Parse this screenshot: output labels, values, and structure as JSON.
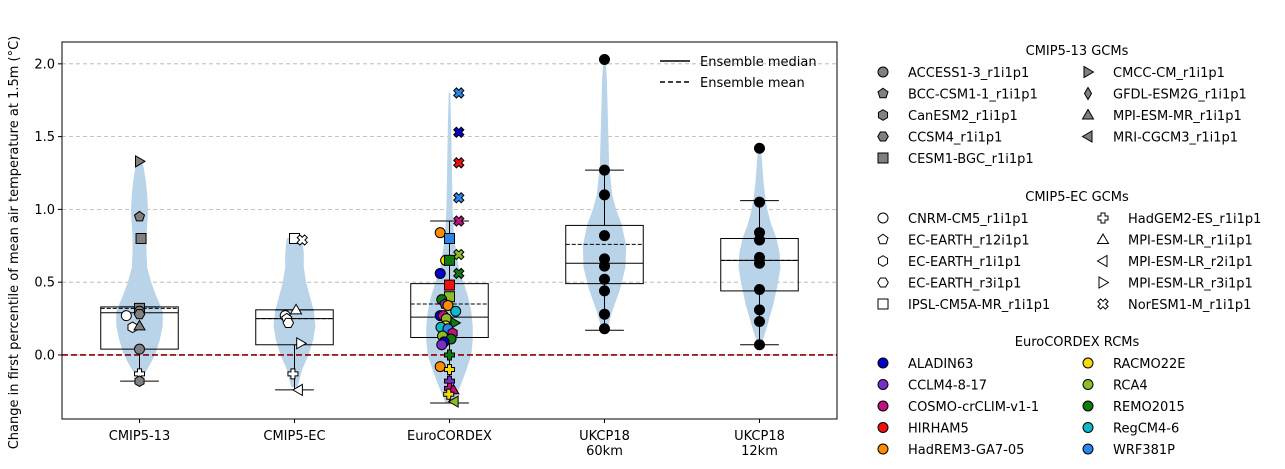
{
  "chart_data": {
    "type": "violin-box-scatter",
    "ylabel": "Change in first percentile of mean air temperature at 1.5m (°C)",
    "ylim": [
      -0.44,
      2.15
    ],
    "yticks": [
      0.0,
      0.5,
      1.0,
      1.5,
      2.0
    ],
    "ytick_labels": [
      "0.0",
      "0.5",
      "1.0",
      "1.5",
      "2.0"
    ],
    "grid": "horizontal dashed",
    "zero_line": {
      "value": 0.0,
      "color": "#8b0000",
      "style": "dashed"
    },
    "categories": [
      "CMIP5-13",
      "CMIP5-EC",
      "EuroCORDEX",
      "UKCP18 60km",
      "UKCP18 12km"
    ],
    "category_label_lines": [
      [
        "CMIP5-13"
      ],
      [
        "CMIP5-EC"
      ],
      [
        "EuroCORDEX"
      ],
      [
        "UKCP18",
        "60km"
      ],
      [
        "UKCP18",
        "12km"
      ]
    ],
    "legend_lines": {
      "placement": "top-right",
      "entries": [
        {
          "label": "Ensemble median",
          "style": "solid"
        },
        {
          "label": "Ensemble mean",
          "style": "dashed"
        }
      ]
    },
    "groups": [
      {
        "name": "CMIP5-13",
        "box": {
          "q1": 0.04,
          "median": 0.29,
          "q3": 0.33,
          "mean": 0.32,
          "whisker_low": -0.18,
          "whisker_high": 0.33
        },
        "violin": [
          [
            -0.16,
            0.03
          ],
          [
            -0.08,
            0.12
          ],
          [
            0.0,
            0.2
          ],
          [
            0.1,
            0.26
          ],
          [
            0.2,
            0.3
          ],
          [
            0.3,
            0.3
          ],
          [
            0.4,
            0.22
          ],
          [
            0.5,
            0.15
          ],
          [
            0.6,
            0.1
          ],
          [
            0.7,
            0.09
          ],
          [
            0.8,
            0.09
          ],
          [
            0.9,
            0.1
          ],
          [
            1.0,
            0.11
          ],
          [
            1.1,
            0.1
          ],
          [
            1.2,
            0.08
          ],
          [
            1.3,
            0.05
          ],
          [
            1.35,
            0.01
          ]
        ],
        "points": [
          {
            "model": "CMCC-CM_r1i1p1",
            "y": 1.33,
            "dx": 0.0
          },
          {
            "model": "BCC-CSM1-1_r1i1p1",
            "y": 0.95,
            "dx": 0.0
          },
          {
            "model": "CESM1-BGC_r1i1p1",
            "y": 0.8,
            "dx": 0.02
          },
          {
            "model": "CESM1-BGC_r1i1p1",
            "y": 0.32,
            "dx": 0.0
          },
          {
            "model": "ACCESS1-3_r1i1p1",
            "y": 0.3,
            "dx": 0.0
          },
          {
            "model": "CCSM4_r1i1p1",
            "y": 0.28,
            "dx": 0.0
          },
          {
            "model": "CNRM-CM5_r1i1p1",
            "y": 0.27,
            "dx": -0.17
          },
          {
            "model": "EC-EARTH_r1i1p1",
            "y": 0.19,
            "dx": -0.09
          },
          {
            "model": "MPI-ESM-MR_r1i1p1",
            "y": 0.2,
            "dx": 0.0
          },
          {
            "model": "ACCESS1-3_r1i1p1",
            "y": 0.04,
            "dx": 0.0
          },
          {
            "model": "HadGEM2-ES_r1i1p1",
            "y": -0.13,
            "dx": 0.0
          },
          {
            "model": "CanESM2_r1i1p1",
            "y": -0.18,
            "dx": 0.0
          }
        ]
      },
      {
        "name": "CMIP5-EC",
        "box": {
          "q1": 0.07,
          "median": 0.25,
          "q3": 0.31,
          "mean": 0.25,
          "whisker_low": -0.24,
          "whisker_high": 0.31
        },
        "violin": [
          [
            -0.22,
            0.04
          ],
          [
            -0.1,
            0.1
          ],
          [
            0.0,
            0.18
          ],
          [
            0.1,
            0.24
          ],
          [
            0.2,
            0.27
          ],
          [
            0.3,
            0.25
          ],
          [
            0.4,
            0.2
          ],
          [
            0.5,
            0.15
          ],
          [
            0.6,
            0.12
          ],
          [
            0.7,
            0.12
          ],
          [
            0.8,
            0.1
          ],
          [
            0.82,
            0.02
          ]
        ],
        "points": [
          {
            "model": "IPSL-CM5A-MR_r1i1p1",
            "y": 0.8,
            "dx": 0.0
          },
          {
            "model": "NorESM1-M_r1i1p1",
            "y": 0.79,
            "dx": 0.1
          },
          {
            "model": "MPI-ESM-LR_r1i1p1",
            "y": 0.31,
            "dx": 0.02
          },
          {
            "model": "CNRM-CM5_r1i1p1",
            "y": 0.27,
            "dx": -0.12
          },
          {
            "model": "EC-EARTH_r12i1p1",
            "y": 0.25,
            "dx": -0.1
          },
          {
            "model": "EC-EARTH_r3i1p1",
            "y": 0.22,
            "dx": -0.08
          },
          {
            "model": "MPI-ESM-LR_r3i1p1",
            "y": 0.08,
            "dx": 0.08
          },
          {
            "model": "HadGEM2-ES_r1i1p1",
            "y": -0.13,
            "dx": -0.02
          },
          {
            "model": "MPI-ESM-LR_r2i1p1",
            "y": -0.24,
            "dx": 0.05
          }
        ]
      },
      {
        "name": "EuroCORDEX",
        "box": {
          "q1": 0.12,
          "median": 0.26,
          "q3": 0.49,
          "mean": 0.35,
          "whisker_low": -0.33,
          "whisker_high": 0.92
        },
        "violin": [
          [
            -0.33,
            0.05
          ],
          [
            -0.2,
            0.15
          ],
          [
            -0.1,
            0.22
          ],
          [
            0.0,
            0.28
          ],
          [
            0.1,
            0.3
          ],
          [
            0.2,
            0.3
          ],
          [
            0.3,
            0.28
          ],
          [
            0.4,
            0.24
          ],
          [
            0.5,
            0.18
          ],
          [
            0.6,
            0.12
          ],
          [
            0.8,
            0.06
          ],
          [
            1.0,
            0.04
          ],
          [
            1.3,
            0.03
          ],
          [
            1.6,
            0.02
          ],
          [
            1.8,
            0.01
          ]
        ],
        "points": [
          {
            "model": "WRF381P",
            "y": 1.8,
            "dx": 0.12,
            "marker": "X"
          },
          {
            "model": "ALADIN63",
            "y": 1.53,
            "dx": 0.12,
            "marker": "X"
          },
          {
            "model": "HIRHAM5",
            "y": 1.32,
            "dx": 0.12,
            "marker": "X"
          },
          {
            "model": "WRF381P",
            "y": 1.08,
            "dx": 0.12,
            "marker": "X"
          },
          {
            "model": "COSMO-crCLIM-v1-1",
            "y": 0.92,
            "dx": 0.12,
            "marker": "X"
          },
          {
            "model": "HadREM3-GA7-05",
            "y": 0.84,
            "dx": -0.12,
            "marker": "o"
          },
          {
            "model": "WRF381P",
            "y": 0.8,
            "dx": 0.0,
            "marker": "s"
          },
          {
            "model": "RCA4",
            "y": 0.69,
            "dx": 0.12,
            "marker": "X"
          },
          {
            "model": "RACMO22E",
            "y": 0.65,
            "dx": -0.05,
            "marker": "o"
          },
          {
            "model": "REMO2015",
            "y": 0.65,
            "dx": 0.0,
            "marker": "s"
          },
          {
            "model": "ALADIN63",
            "y": 0.56,
            "dx": -0.12,
            "marker": "o"
          },
          {
            "model": "REMO2015",
            "y": 0.56,
            "dx": 0.12,
            "marker": "X"
          },
          {
            "model": "HIRHAM5",
            "y": 0.48,
            "dx": 0.0,
            "marker": "s"
          },
          {
            "model": "RCA4",
            "y": 0.4,
            "dx": 0.0,
            "marker": "s"
          },
          {
            "model": "REMO2015",
            "y": 0.38,
            "dx": -0.1,
            "marker": "o"
          },
          {
            "model": "CCLM4-8-17",
            "y": 0.35,
            "dx": -0.06,
            "marker": "p"
          },
          {
            "model": "HadREM3-GA7-05",
            "y": 0.34,
            "dx": -0.02,
            "marker": "o"
          },
          {
            "model": "RegCM4-6",
            "y": 0.3,
            "dx": 0.08,
            "marker": "o"
          },
          {
            "model": "ALADIN63",
            "y": 0.27,
            "dx": -0.12,
            "marker": "o"
          },
          {
            "model": "COSMO-crCLIM-v1-1",
            "y": 0.27,
            "dx": -0.08,
            "marker": "o"
          },
          {
            "model": "RCA4",
            "y": 0.25,
            "dx": -0.04,
            "marker": "o"
          },
          {
            "model": "REMO2015",
            "y": 0.22,
            "dx": 0.07,
            "marker": ">"
          },
          {
            "model": "RACMO22E",
            "y": 0.2,
            "dx": -0.05,
            "marker": "o"
          },
          {
            "model": "RegCM4-6",
            "y": 0.19,
            "dx": -0.11,
            "marker": "o"
          },
          {
            "model": "WRF381P",
            "y": 0.18,
            "dx": -0.02,
            "marker": "o"
          },
          {
            "model": "COSMO-crCLIM-v1-1",
            "y": 0.15,
            "dx": 0.04,
            "marker": "h"
          },
          {
            "model": "RCA4",
            "y": 0.13,
            "dx": -0.09,
            "marker": "o"
          },
          {
            "model": "REMO2015",
            "y": 0.11,
            "dx": 0.02,
            "marker": "o"
          },
          {
            "model": "ALADIN63",
            "y": 0.09,
            "dx": -0.07,
            "marker": "o"
          },
          {
            "model": "CCLM4-8-17",
            "y": 0.07,
            "dx": -0.1,
            "marker": "o"
          },
          {
            "model": "HadREM3-GA7-05",
            "y": -0.08,
            "dx": -0.12,
            "marker": "o"
          },
          {
            "model": "REMO2015",
            "y": 0.0,
            "dx": 0.0,
            "marker": "P"
          },
          {
            "model": "RACMO22E",
            "y": -0.1,
            "dx": 0.0,
            "marker": "P"
          },
          {
            "model": "CCLM4-8-17",
            "y": -0.18,
            "dx": 0.0,
            "marker": "P"
          },
          {
            "model": "COSMO-crCLIM-v1-1",
            "y": -0.23,
            "dx": 0.0,
            "marker": "P"
          },
          {
            "model": "COSMO-crCLIM-v1-1",
            "y": -0.24,
            "dx": 0.05,
            "marker": "^"
          },
          {
            "model": "RACMO22E",
            "y": -0.27,
            "dx": -0.01,
            "marker": "P"
          },
          {
            "model": "RCA4",
            "y": -0.32,
            "dx": 0.06,
            "marker": "<"
          }
        ]
      },
      {
        "name": "UKCP18 60km",
        "box": {
          "q1": 0.49,
          "median": 0.63,
          "q3": 0.89,
          "mean": 0.76,
          "whisker_low": 0.17,
          "whisker_high": 1.27
        },
        "violin": [
          [
            0.18,
            0.04
          ],
          [
            0.3,
            0.1
          ],
          [
            0.45,
            0.2
          ],
          [
            0.6,
            0.27
          ],
          [
            0.75,
            0.28
          ],
          [
            0.9,
            0.22
          ],
          [
            1.0,
            0.15
          ],
          [
            1.1,
            0.1
          ],
          [
            1.2,
            0.08
          ],
          [
            1.3,
            0.06
          ],
          [
            1.5,
            0.05
          ],
          [
            1.7,
            0.04
          ],
          [
            1.9,
            0.03
          ],
          [
            2.05,
            0.01
          ]
        ],
        "points": [
          {
            "y": 2.03
          },
          {
            "y": 1.27
          },
          {
            "y": 1.1
          },
          {
            "y": 0.82
          },
          {
            "y": 0.66
          },
          {
            "y": 0.61
          },
          {
            "y": 0.52
          },
          {
            "y": 0.44
          },
          {
            "y": 0.28
          },
          {
            "y": 0.18
          }
        ]
      },
      {
        "name": "UKCP18 12km",
        "box": {
          "q1": 0.44,
          "median": 0.65,
          "q3": 0.8,
          "mean": 0.65,
          "whisker_low": 0.07,
          "whisker_high": 1.06
        },
        "violin": [
          [
            0.08,
            0.03
          ],
          [
            0.2,
            0.1
          ],
          [
            0.35,
            0.18
          ],
          [
            0.5,
            0.24
          ],
          [
            0.6,
            0.27
          ],
          [
            0.7,
            0.26
          ],
          [
            0.8,
            0.22
          ],
          [
            0.9,
            0.15
          ],
          [
            1.0,
            0.1
          ],
          [
            1.1,
            0.07
          ],
          [
            1.2,
            0.05
          ],
          [
            1.35,
            0.03
          ],
          [
            1.45,
            0.01
          ]
        ],
        "points": [
          {
            "y": 1.42
          },
          {
            "y": 1.05
          },
          {
            "y": 0.84
          },
          {
            "y": 0.79
          },
          {
            "y": 0.67
          },
          {
            "y": 0.63
          },
          {
            "y": 0.45
          },
          {
            "y": 0.31
          },
          {
            "y": 0.23
          },
          {
            "y": 0.07
          }
        ]
      }
    ],
    "legends": [
      {
        "title": "CMIP5-13 GCMs",
        "entries": [
          {
            "label": "ACCESS1-3_r1i1p1",
            "marker": "o",
            "fill": "#808080"
          },
          {
            "label": "BCC-CSM1-1_r1i1p1",
            "marker": "p",
            "fill": "#808080"
          },
          {
            "label": "CanESM2_r1i1p1",
            "marker": "h",
            "fill": "#808080"
          },
          {
            "label": "CCSM4_r1i1p1",
            "marker": "H",
            "fill": "#808080"
          },
          {
            "label": "CESM1-BGC_r1i1p1",
            "marker": "s",
            "fill": "#808080"
          },
          {
            "label": "CMCC-CM_r1i1p1",
            "marker": ">",
            "fill": "#808080"
          },
          {
            "label": "GFDL-ESM2G_r1i1p1",
            "marker": "d",
            "fill": "#808080"
          },
          {
            "label": "MPI-ESM-MR_r1i1p1",
            "marker": "^",
            "fill": "#808080"
          },
          {
            "label": "MRI-CGCM3_r1i1p1",
            "marker": "<",
            "fill": "#808080"
          }
        ]
      },
      {
        "title": "CMIP5-EC GCMs",
        "entries": [
          {
            "label": "CNRM-CM5_r1i1p1",
            "marker": "o",
            "fill": "#ffffff"
          },
          {
            "label": "EC-EARTH_r12i1p1",
            "marker": "p",
            "fill": "#ffffff"
          },
          {
            "label": "EC-EARTH_r1i1p1",
            "marker": "h",
            "fill": "#ffffff"
          },
          {
            "label": "EC-EARTH_r3i1p1",
            "marker": "H",
            "fill": "#ffffff"
          },
          {
            "label": "IPSL-CM5A-MR_r1i1p1",
            "marker": "s",
            "fill": "#ffffff"
          },
          {
            "label": "HadGEM2-ES_r1i1p1",
            "marker": "P",
            "fill": "#ffffff"
          },
          {
            "label": "MPI-ESM-LR_r1i1p1",
            "marker": "^",
            "fill": "#ffffff"
          },
          {
            "label": "MPI-ESM-LR_r2i1p1",
            "marker": "<",
            "fill": "#ffffff"
          },
          {
            "label": "MPI-ESM-LR_r3i1p1",
            "marker": ">",
            "fill": "#ffffff"
          },
          {
            "label": "NorESM1-M_r1i1p1",
            "marker": "X",
            "fill": "#ffffff"
          }
        ]
      },
      {
        "title": "EuroCORDEX RCMs",
        "entries": [
          {
            "label": "ALADIN63",
            "marker": "o",
            "fill": "#0000c8"
          },
          {
            "label": "CCLM4-8-17",
            "marker": "o",
            "fill": "#7a2ec8"
          },
          {
            "label": "COSMO-crCLIM-v1-1",
            "marker": "o",
            "fill": "#c0117f"
          },
          {
            "label": "HIRHAM5",
            "marker": "o",
            "fill": "#f01010"
          },
          {
            "label": "HadREM3-GA7-05",
            "marker": "o",
            "fill": "#ff8c00"
          },
          {
            "label": "RACMO22E",
            "marker": "o",
            "fill": "#f5d90a"
          },
          {
            "label": "RCA4",
            "marker": "o",
            "fill": "#8cbd28"
          },
          {
            "label": "REMO2015",
            "marker": "o",
            "fill": "#107a10"
          },
          {
            "label": "RegCM4-6",
            "marker": "o",
            "fill": "#10b8c8"
          },
          {
            "label": "WRF381P",
            "marker": "o",
            "fill": "#2a86e8"
          }
        ]
      }
    ],
    "colors": {
      "violin": "#b9d3e8",
      "zero_line": "#8b0000",
      "ukcp_points": "#000000"
    }
  }
}
